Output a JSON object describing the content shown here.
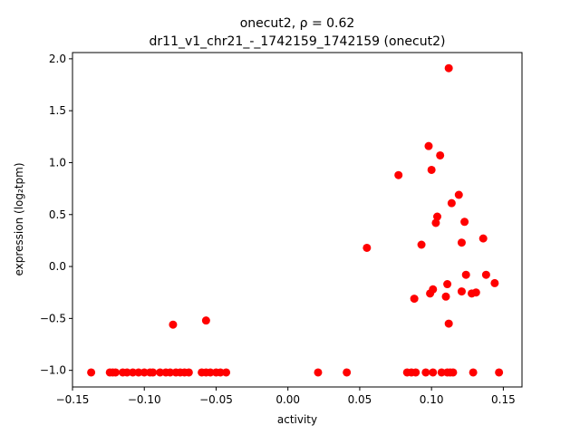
{
  "chart_data": {
    "type": "scatter",
    "title_line1": "onecut2, ρ = 0.62",
    "title_line2": "dr11_v1_chr21_-_1742159_1742159 (onecut2)",
    "xlabel": "activity",
    "ylabel": "expression (log₂tpm)",
    "xlim": [
      -0.15,
      0.163
    ],
    "ylim": [
      -1.16,
      2.06
    ],
    "xticks": [
      -0.15,
      -0.1,
      -0.05,
      0.0,
      0.05,
      0.1,
      0.15
    ],
    "xtick_labels": [
      "−0.15",
      "−0.10",
      "−0.05",
      "0.00",
      "0.05",
      "0.10",
      "0.15"
    ],
    "yticks": [
      -1.0,
      -0.5,
      0.0,
      0.5,
      1.0,
      1.5,
      2.0
    ],
    "ytick_labels": [
      "−1.0",
      "−0.5",
      "0.0",
      "0.5",
      "1.0",
      "1.5",
      "2.0"
    ],
    "grid": false,
    "marker_color": "#ff0000",
    "points": [
      {
        "x": -0.137,
        "y": -1.02
      },
      {
        "x": -0.124,
        "y": -1.02
      },
      {
        "x": -0.122,
        "y": -1.02
      },
      {
        "x": -0.12,
        "y": -1.02
      },
      {
        "x": -0.115,
        "y": -1.02
      },
      {
        "x": -0.112,
        "y": -1.02
      },
      {
        "x": -0.108,
        "y": -1.02
      },
      {
        "x": -0.104,
        "y": -1.02
      },
      {
        "x": -0.1,
        "y": -1.02
      },
      {
        "x": -0.096,
        "y": -1.02
      },
      {
        "x": -0.094,
        "y": -1.02
      },
      {
        "x": -0.089,
        "y": -1.02
      },
      {
        "x": -0.085,
        "y": -1.02
      },
      {
        "x": -0.082,
        "y": -1.02
      },
      {
        "x": -0.078,
        "y": -1.02
      },
      {
        "x": -0.075,
        "y": -1.02
      },
      {
        "x": -0.072,
        "y": -1.02
      },
      {
        "x": -0.069,
        "y": -1.02
      },
      {
        "x": -0.06,
        "y": -1.02
      },
      {
        "x": -0.057,
        "y": -1.02
      },
      {
        "x": -0.054,
        "y": -1.02
      },
      {
        "x": -0.05,
        "y": -1.02
      },
      {
        "x": -0.047,
        "y": -1.02
      },
      {
        "x": -0.043,
        "y": -1.02
      },
      {
        "x": -0.08,
        "y": -0.56
      },
      {
        "x": -0.057,
        "y": -0.52
      },
      {
        "x": 0.021,
        "y": -1.02
      },
      {
        "x": 0.041,
        "y": -1.02
      },
      {
        "x": 0.055,
        "y": 0.18
      },
      {
        "x": 0.077,
        "y": 0.88
      },
      {
        "x": 0.083,
        "y": -1.02
      },
      {
        "x": 0.086,
        "y": -1.02
      },
      {
        "x": 0.089,
        "y": -1.02
      },
      {
        "x": 0.088,
        "y": -0.31
      },
      {
        "x": 0.093,
        "y": 0.21
      },
      {
        "x": 0.096,
        "y": -1.02
      },
      {
        "x": 0.098,
        "y": 1.16
      },
      {
        "x": 0.099,
        "y": -0.26
      },
      {
        "x": 0.1,
        "y": 0.93
      },
      {
        "x": 0.101,
        "y": -0.22
      },
      {
        "x": 0.101,
        "y": -1.02
      },
      {
        "x": 0.103,
        "y": 0.42
      },
      {
        "x": 0.104,
        "y": 0.48
      },
      {
        "x": 0.106,
        "y": 1.07
      },
      {
        "x": 0.107,
        "y": -1.02
      },
      {
        "x": 0.11,
        "y": -0.29
      },
      {
        "x": 0.111,
        "y": -0.17
      },
      {
        "x": 0.111,
        "y": -1.02
      },
      {
        "x": 0.112,
        "y": 1.91
      },
      {
        "x": 0.112,
        "y": -0.55
      },
      {
        "x": 0.113,
        "y": -1.02
      },
      {
        "x": 0.114,
        "y": 0.61
      },
      {
        "x": 0.115,
        "y": -1.02
      },
      {
        "x": 0.119,
        "y": 0.69
      },
      {
        "x": 0.121,
        "y": -0.24
      },
      {
        "x": 0.121,
        "y": 0.23
      },
      {
        "x": 0.123,
        "y": 0.43
      },
      {
        "x": 0.124,
        "y": -0.08
      },
      {
        "x": 0.128,
        "y": -0.26
      },
      {
        "x": 0.129,
        "y": -1.02
      },
      {
        "x": 0.131,
        "y": -0.25
      },
      {
        "x": 0.136,
        "y": 0.27
      },
      {
        "x": 0.138,
        "y": -0.08
      },
      {
        "x": 0.144,
        "y": -0.16
      },
      {
        "x": 0.147,
        "y": -1.02
      }
    ]
  }
}
